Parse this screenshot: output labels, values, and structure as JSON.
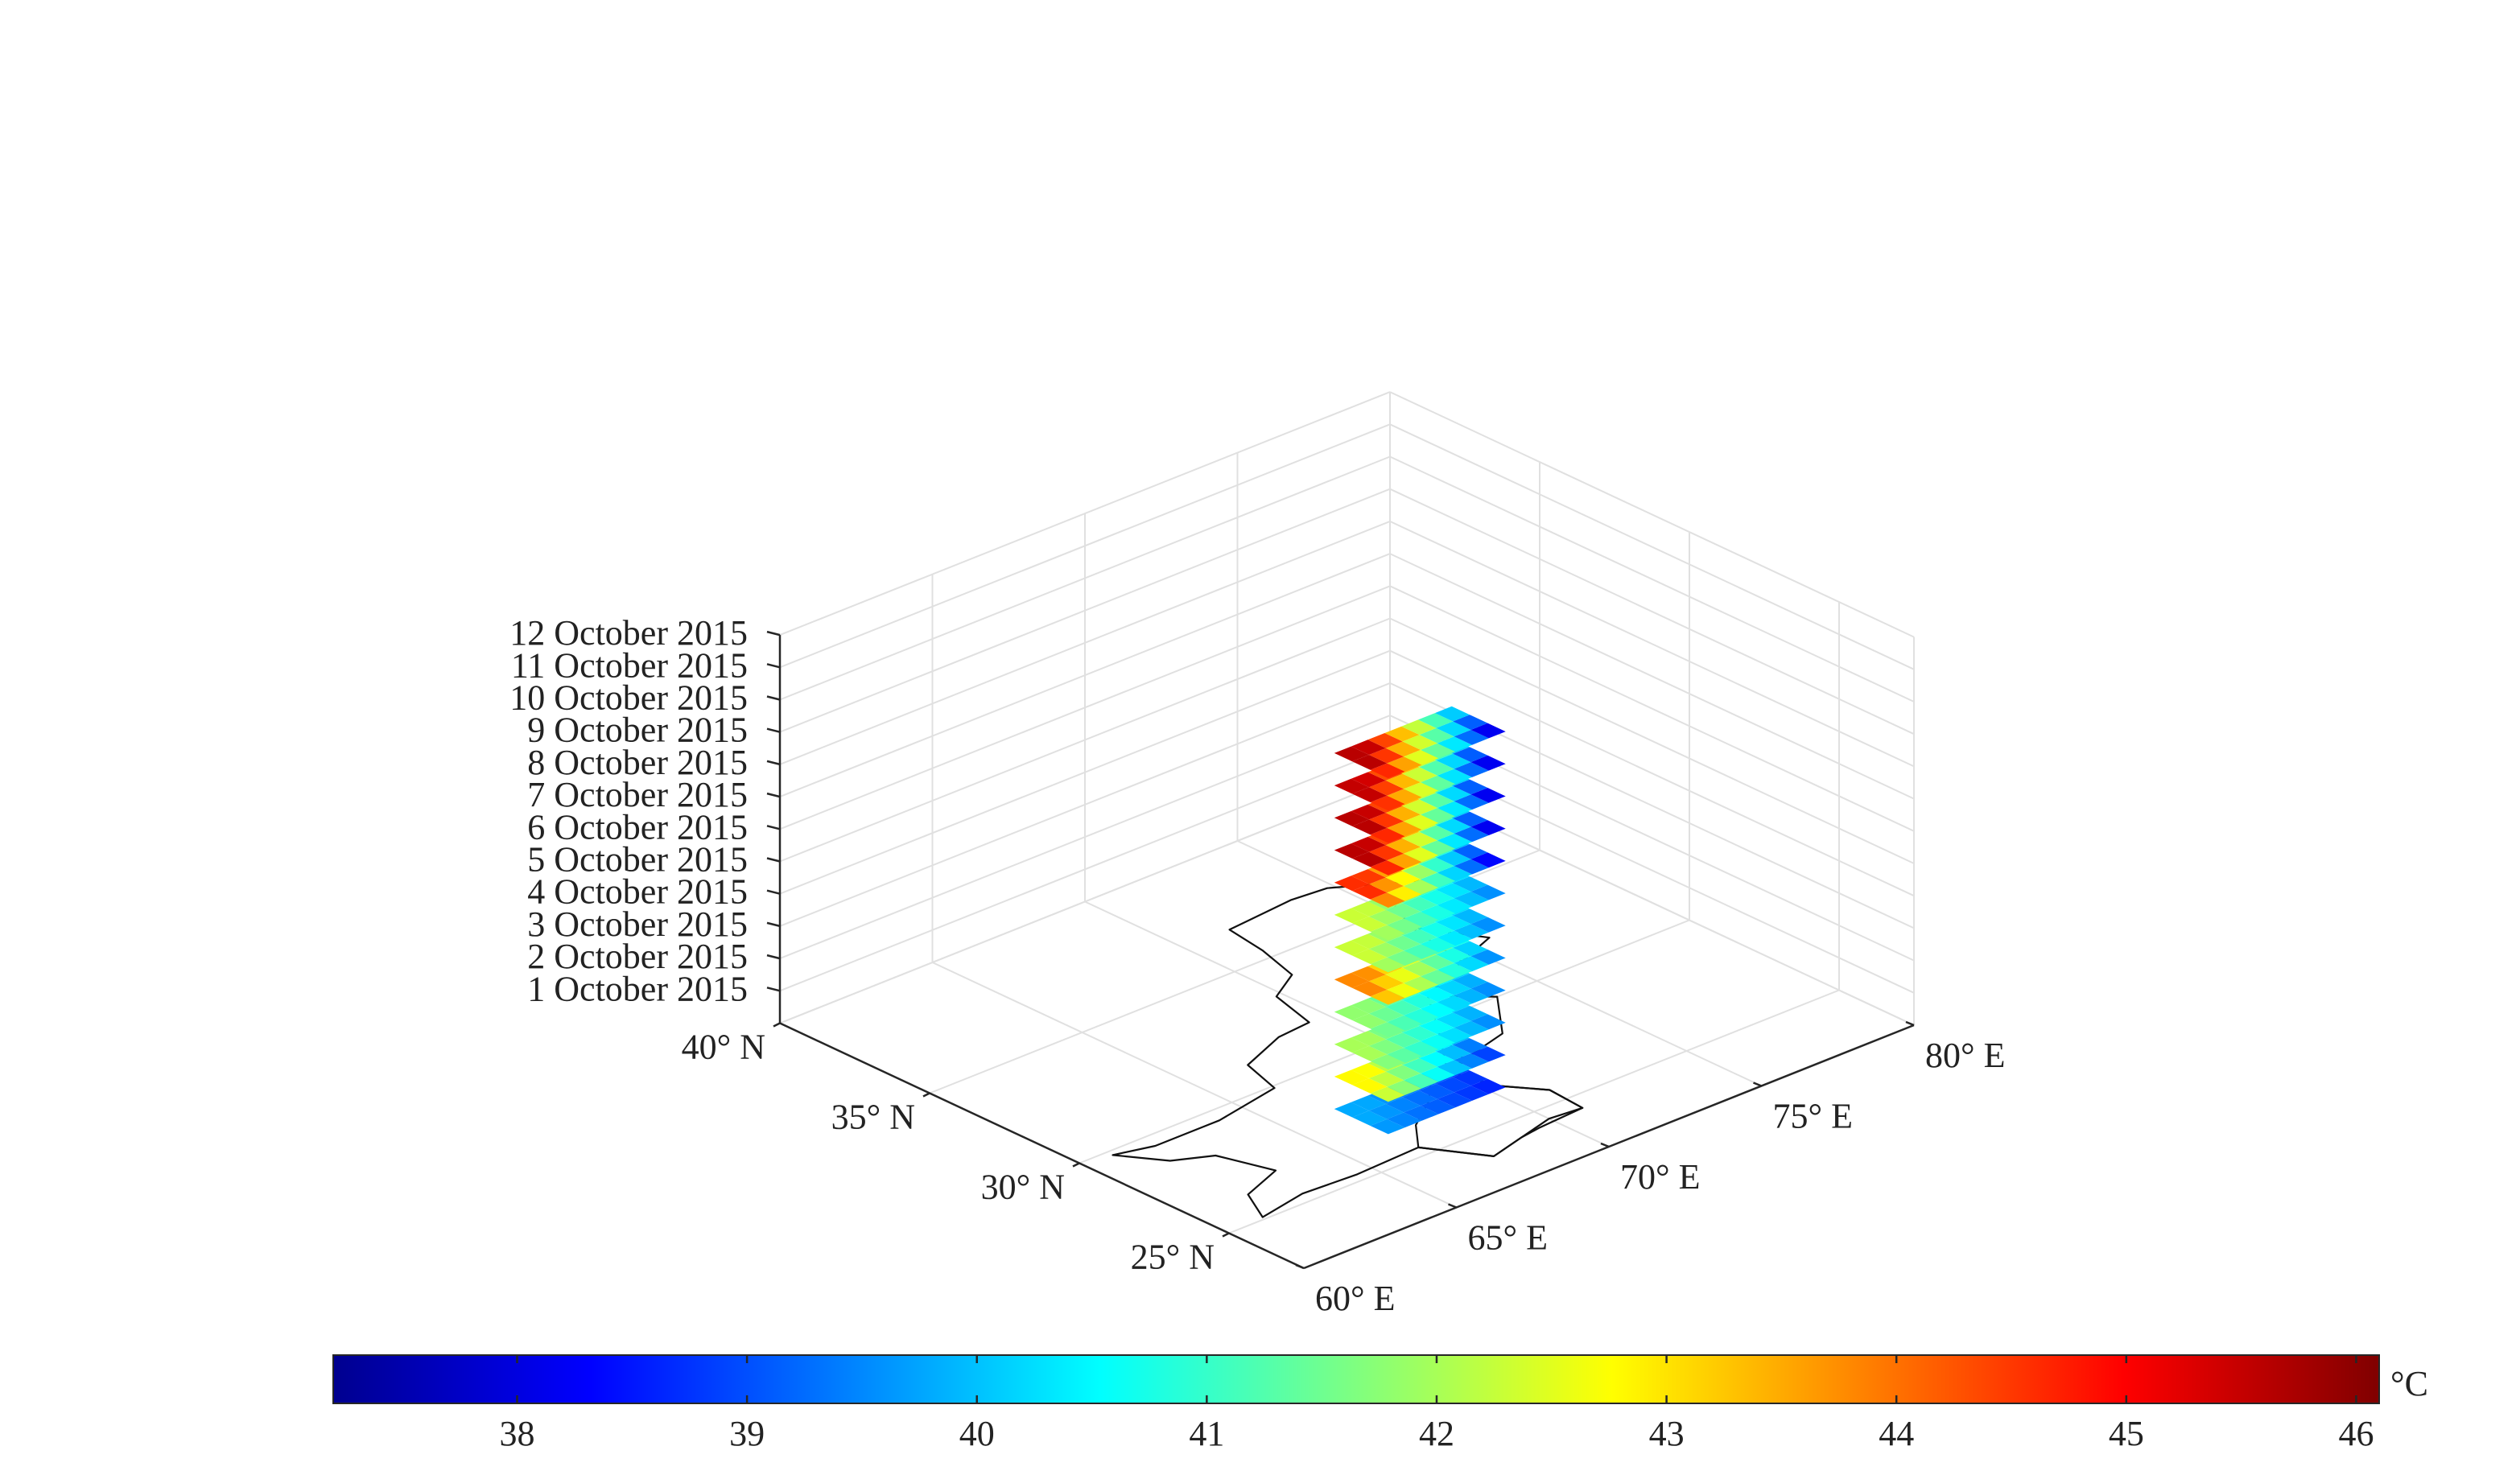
{
  "chart_data": {
    "type": "heatmap",
    "projection": "3d",
    "x_axis": {
      "ticks": [
        60,
        65,
        70,
        75,
        80
      ],
      "tick_labels": [
        "60° E",
        "65° E",
        "70° E",
        "75° E",
        "80° E"
      ],
      "range": [
        60,
        80
      ]
    },
    "y_axis": {
      "ticks": [
        25,
        30,
        35,
        40
      ],
      "tick_labels": [
        "25° N",
        "30° N",
        "35° N",
        "40° N"
      ],
      "range": [
        22.5,
        40
      ]
    },
    "z_axis": {
      "ticks": [
        1,
        2,
        3,
        4,
        5,
        6,
        7,
        8,
        9,
        10,
        11,
        12
      ],
      "tick_labels": [
        "1 October 2015",
        "2 October 2015",
        "3 October 2015",
        "4 October 2015",
        "5 October 2015",
        "6 October 2015",
        "7 October 2015",
        "8 October 2015",
        "9 October 2015",
        "10 October 2015",
        "11 October 2015",
        "12 October 2015"
      ],
      "range": [
        0,
        12
      ]
    },
    "grid": true,
    "colorbar": {
      "position": "bottom",
      "colormap": "jet",
      "range": [
        37.2,
        46.1
      ],
      "ticks": [
        38,
        39,
        40,
        41,
        42,
        43,
        44,
        45,
        46
      ],
      "tick_labels": [
        "38",
        "39",
        "40",
        "41",
        "42",
        "43",
        "44",
        "45",
        "46"
      ],
      "unit": "°C"
    },
    "slices": [
      {
        "day": 1,
        "min_temp": 38.6,
        "max_temp": 39.8
      },
      {
        "day": 2,
        "min_temp": 38.8,
        "max_temp": 42.8
      },
      {
        "day": 3,
        "min_temp": 39.5,
        "max_temp": 42.0
      },
      {
        "day": 4,
        "min_temp": 39.5,
        "max_temp": 41.8
      },
      {
        "day": 5,
        "min_temp": 39.5,
        "max_temp": 43.8
      },
      {
        "day": 6,
        "min_temp": 39.5,
        "max_temp": 42.3
      },
      {
        "day": 7,
        "min_temp": 39.5,
        "max_temp": 42.3
      },
      {
        "day": 8,
        "min_temp": 38.2,
        "max_temp": 44.6
      },
      {
        "day": 9,
        "min_temp": 38.0,
        "max_temp": 45.6
      },
      {
        "day": 10,
        "min_temp": 38.0,
        "max_temp": 45.6
      },
      {
        "day": 11,
        "min_temp": 38.0,
        "max_temp": 45.5
      },
      {
        "day": 12,
        "min_temp": 38.0,
        "max_temp": 45.6
      }
    ]
  }
}
